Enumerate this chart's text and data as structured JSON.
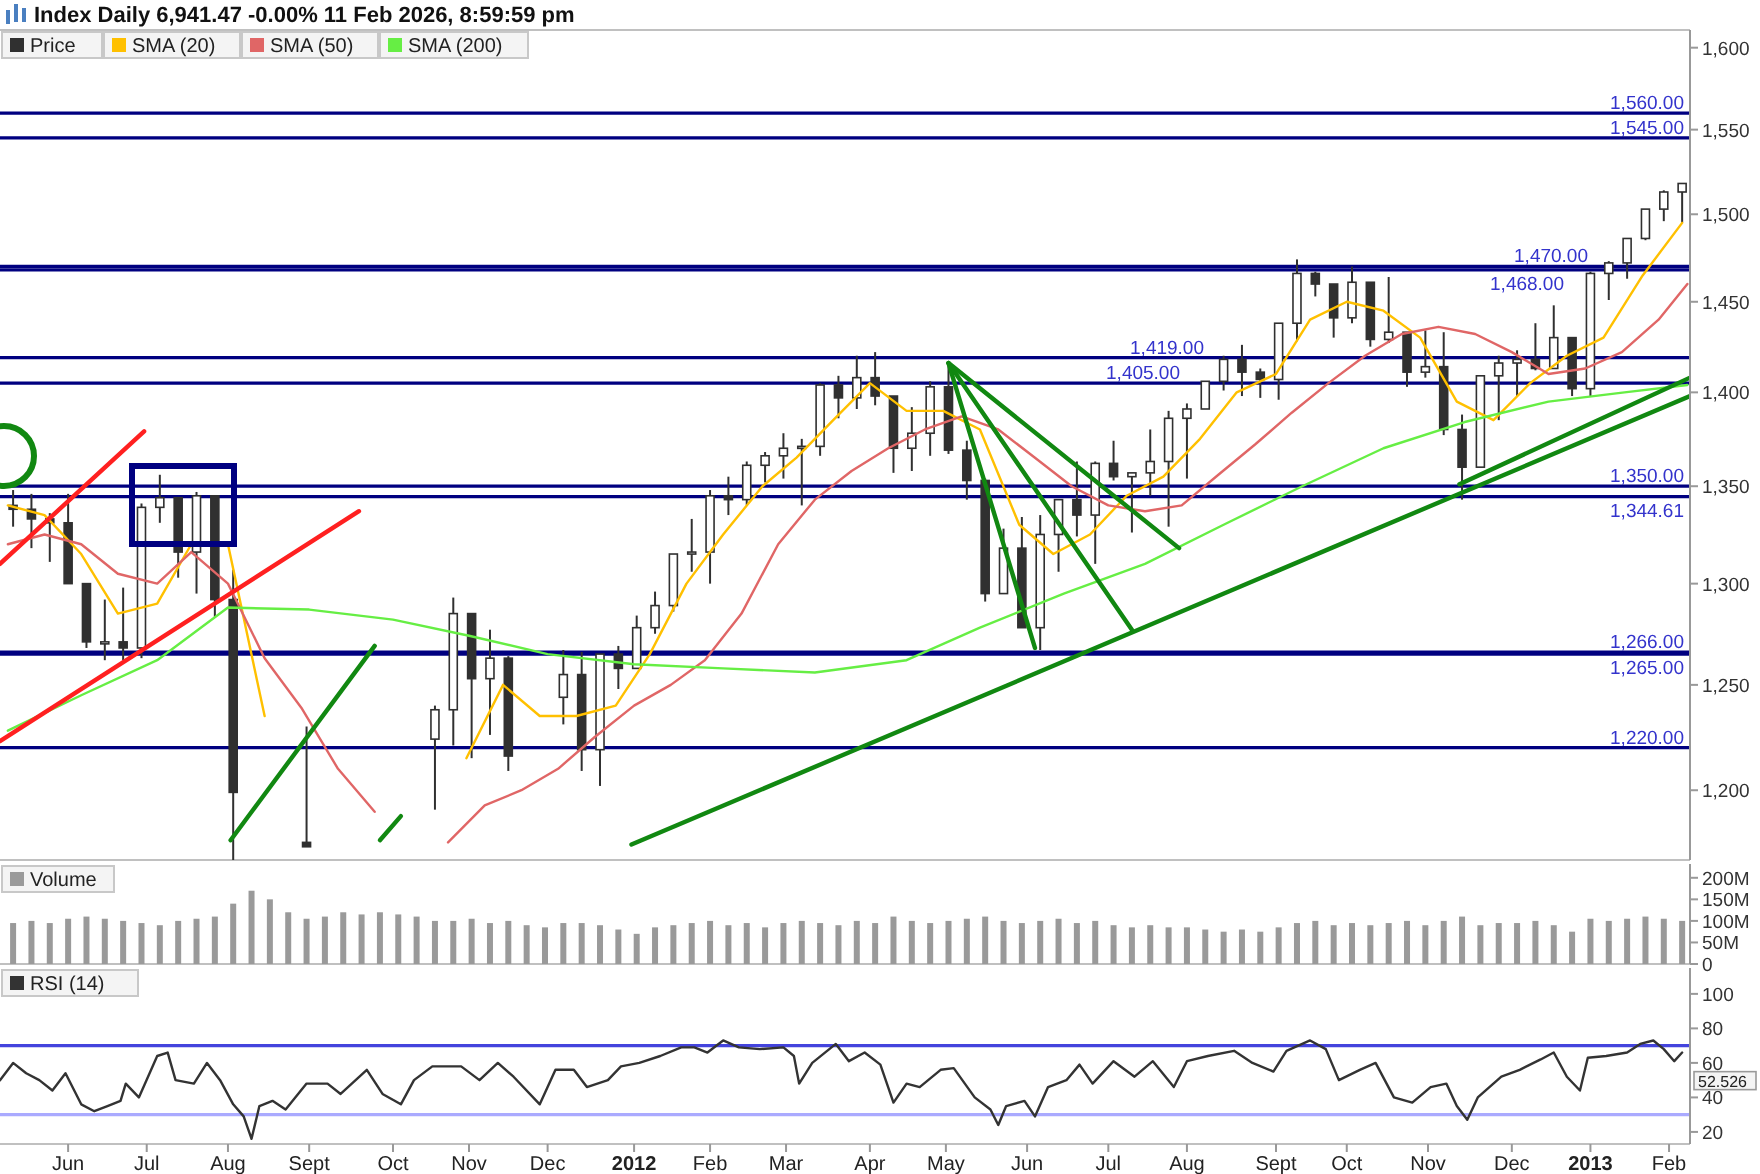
{
  "chart_data": [
    {
      "type": "candlestick",
      "title": "Index Daily 6,941.47 -0.00% 11 Feb 2026, 8:59:59 pm",
      "legend": "top left",
      "log": "y",
      "tick_labels": "y",
      "xlim": [
        "2011-05-06",
        "2013-02-09"
      ],
      "ylim": [
        1168,
        1611
      ],
      "yticks": [
        {
          "value": 1600,
          "label": "1,600"
        },
        {
          "value": 1550,
          "label": "1,550"
        },
        {
          "value": 1500,
          "label": "1,500"
        },
        {
          "value": 1450,
          "label": "1,450"
        },
        {
          "value": 1400,
          "label": "1,400"
        },
        {
          "value": 1350,
          "label": "1,350"
        },
        {
          "value": 1300,
          "label": "1,300"
        },
        {
          "value": 1250,
          "label": "1,250"
        },
        {
          "value": 1200,
          "label": "1,200"
        }
      ],
      "ref_lines": [
        {
          "axis": "y",
          "value": 1560,
          "label": "1,560.00",
          "color": "#000080"
        },
        {
          "axis": "y",
          "value": 1545,
          "label": "1,545.00",
          "color": "#000080"
        },
        {
          "axis": "y",
          "value": 1470,
          "label": "1,470.00",
          "color": "#000080"
        },
        {
          "axis": "y",
          "value": 1468,
          "label": "1,468.00",
          "color": "#000080"
        },
        {
          "axis": "y",
          "value": 1419,
          "label": "1,419.00",
          "color": "#000080"
        },
        {
          "axis": "y",
          "value": 1405,
          "label": "1,405.00",
          "color": "#000080"
        },
        {
          "axis": "y",
          "value": 1350,
          "label": "1,350.00",
          "color": "#000080"
        },
        {
          "axis": "y",
          "value": 1344.61,
          "label": "1,344.61",
          "color": "#000080"
        },
        {
          "axis": "y",
          "value": 1266,
          "label": "1,266.00",
          "color": "#000080"
        },
        {
          "axis": "y",
          "value": 1265,
          "label": "1,265.00",
          "color": "#000080"
        },
        {
          "axis": "y",
          "value": 1220,
          "label": "1,220.00",
          "color": "#000080"
        }
      ],
      "series": [
        {
          "name": "Price",
          "color": "#303030",
          "x": [
            "2011-05-11",
            "2011-05-18",
            "2011-05-25",
            "2011-06-01",
            "2011-06-08",
            "2011-06-15",
            "2011-06-22",
            "2011-06-29",
            "2011-07-06",
            "2011-07-13",
            "2011-07-20",
            "2011-07-27",
            "2011-08-03",
            "2011-08-31",
            "2011-10-19",
            "2011-10-26",
            "2011-11-02",
            "2011-11-09",
            "2011-11-16",
            "2011-12-07",
            "2011-12-14",
            "2011-12-21",
            "2011-12-28",
            "2012-01-04",
            "2012-01-11",
            "2012-01-18",
            "2012-01-25",
            "2012-02-01",
            "2012-02-08",
            "2012-02-15",
            "2012-02-22",
            "2012-02-29",
            "2012-03-07",
            "2012-03-14",
            "2012-03-21",
            "2012-03-28",
            "2012-04-04",
            "2012-04-11",
            "2012-04-18",
            "2012-04-25",
            "2012-05-02",
            "2012-05-09",
            "2012-05-16",
            "2012-05-23",
            "2012-05-30",
            "2012-06-06",
            "2012-06-13",
            "2012-06-20",
            "2012-06-27",
            "2012-07-04",
            "2012-07-11",
            "2012-07-18",
            "2012-07-25",
            "2012-08-01",
            "2012-08-08",
            "2012-08-15",
            "2012-08-22",
            "2012-08-29",
            "2012-09-05",
            "2012-09-12",
            "2012-09-19",
            "2012-09-26",
            "2012-10-03",
            "2012-10-10",
            "2012-10-17",
            "2012-10-24",
            "2012-10-31",
            "2012-11-07",
            "2012-11-14",
            "2012-11-21",
            "2012-11-28",
            "2012-12-05",
            "2012-12-12",
            "2012-12-19",
            "2012-12-26",
            "2013-01-02",
            "2013-01-09",
            "2013-01-16",
            "2013-01-23",
            "2013-01-30",
            "2013-02-06"
          ],
          "ohlc": [
            [
              1340,
              1348,
              1329,
              1338
            ],
            [
              1338,
              1346,
              1318,
              1333
            ],
            [
              1333,
              1336,
              1311,
              1331
            ],
            [
              1331,
              1346,
              1300,
              1300
            ],
            [
              1300,
              1300,
              1268,
              1271
            ],
            [
              1271,
              1292,
              1262,
              1271
            ],
            [
              1271,
              1298,
              1262,
              1268
            ],
            [
              1268,
              1341,
              1263,
              1339
            ],
            [
              1339,
              1356,
              1331,
              1344
            ],
            [
              1344,
              1344,
              1303,
              1316
            ],
            [
              1316,
              1347,
              1295,
              1345
            ],
            [
              1345,
              1345,
              1283,
              1292
            ],
            [
              1292,
              1307,
              1168,
              1199
            ],
            [
              1176,
              1230,
              1174,
              1174
            ],
            [
              1224,
              1240,
              1191,
              1238
            ],
            [
              1238,
              1293,
              1221,
              1285
            ],
            [
              1285,
              1285,
              1215,
              1253
            ],
            [
              1253,
              1277,
              1226,
              1263
            ],
            [
              1263,
              1264,
              1209,
              1216
            ],
            [
              1244,
              1267,
              1231,
              1255
            ],
            [
              1255,
              1266,
              1209,
              1219
            ],
            [
              1219,
              1265,
              1202,
              1265
            ],
            [
              1265,
              1269,
              1248,
              1258
            ],
            [
              1258,
              1284,
              1258,
              1278
            ],
            [
              1278,
              1296,
              1275,
              1289
            ],
            [
              1289,
              1315,
              1286,
              1315
            ],
            [
              1315,
              1333,
              1306,
              1316
            ],
            [
              1316,
              1348,
              1300,
              1345
            ],
            [
              1345,
              1355,
              1335,
              1343
            ],
            [
              1343,
              1363,
              1340,
              1361
            ],
            [
              1361,
              1368,
              1352,
              1366
            ],
            [
              1366,
              1378,
              1354,
              1370
            ],
            [
              1370,
              1375,
              1340,
              1371
            ],
            [
              1371,
              1405,
              1366,
              1404
            ],
            [
              1404,
              1409,
              1386,
              1397
            ],
            [
              1397,
              1420,
              1391,
              1408
            ],
            [
              1408,
              1422,
              1393,
              1398
            ],
            [
              1398,
              1398,
              1357,
              1370
            ],
            [
              1370,
              1392,
              1358,
              1378
            ],
            [
              1378,
              1406,
              1366,
              1403
            ],
            [
              1403,
              1415,
              1367,
              1369
            ],
            [
              1369,
              1374,
              1343,
              1353
            ],
            [
              1353,
              1354,
              1291,
              1295
            ],
            [
              1295,
              1328,
              1295,
              1318
            ],
            [
              1318,
              1334,
              1278,
              1278
            ],
            [
              1278,
              1335,
              1267,
              1325
            ],
            [
              1325,
              1343,
              1306,
              1343
            ],
            [
              1343,
              1363,
              1324,
              1335
            ],
            [
              1335,
              1363,
              1310,
              1362
            ],
            [
              1362,
              1374,
              1353,
              1355
            ],
            [
              1355,
              1357,
              1326,
              1357
            ],
            [
              1357,
              1380,
              1345,
              1363
            ],
            [
              1363,
              1390,
              1329,
              1386
            ],
            [
              1386,
              1394,
              1354,
              1391
            ],
            [
              1391,
              1406,
              1391,
              1406
            ],
            [
              1406,
              1420,
              1401,
              1418
            ],
            [
              1418,
              1426,
              1398,
              1411
            ],
            [
              1411,
              1413,
              1397,
              1407
            ],
            [
              1407,
              1438,
              1396,
              1438
            ],
            [
              1438,
              1474,
              1428,
              1466
            ],
            [
              1466,
              1467,
              1453,
              1460
            ],
            [
              1460,
              1460,
              1430,
              1441
            ],
            [
              1441,
              1470,
              1438,
              1461
            ],
            [
              1461,
              1461,
              1425,
              1429
            ],
            [
              1429,
              1464,
              1427,
              1433
            ],
            [
              1433,
              1433,
              1403,
              1411
            ],
            [
              1411,
              1434,
              1408,
              1414
            ],
            [
              1414,
              1433,
              1377,
              1380
            ],
            [
              1380,
              1388,
              1343,
              1360
            ],
            [
              1360,
              1409,
              1360,
              1409
            ],
            [
              1409,
              1420,
              1385,
              1416
            ],
            [
              1416,
              1423,
              1398,
              1418
            ],
            [
              1418,
              1438,
              1412,
              1413
            ],
            [
              1413,
              1448,
              1413,
              1430
            ],
            [
              1430,
              1430,
              1398,
              1402
            ],
            [
              1402,
              1467,
              1398,
              1466
            ],
            [
              1466,
              1473,
              1451,
              1472
            ],
            [
              1472,
              1486,
              1463,
              1486
            ],
            [
              1486,
              1503,
              1485,
              1503
            ],
            [
              1503,
              1514,
              1496,
              1513
            ],
            [
              1513,
              1518,
              1495,
              1518
            ]
          ]
        },
        {
          "name": "SMA (20)",
          "type": "line",
          "color": "#ffc000",
          "x": [
            "2011-05-09",
            "2011-05-23",
            "2011-06-06",
            "2011-06-20",
            "2011-07-05",
            "2011-07-18",
            "2011-08-01",
            "2011-08-15",
            "2011-08-29",
            "2011-09-12",
            "2011-09-26",
            "2011-10-10",
            "2011-10-31",
            "2011-11-14",
            "2011-11-28",
            "2011-12-12",
            "2011-12-27",
            "2012-01-09",
            "2012-01-23",
            "2012-02-06",
            "2012-02-21",
            "2012-03-05",
            "2012-03-19",
            "2012-04-02",
            "2012-04-16",
            "2012-04-30",
            "2012-05-14",
            "2012-05-29",
            "2012-06-11",
            "2012-06-25",
            "2012-07-09",
            "2012-07-23",
            "2012-08-06",
            "2012-08-20",
            "2012-09-04",
            "2012-09-17",
            "2012-10-01",
            "2012-10-15",
            "2012-10-29",
            "2012-11-12",
            "2012-11-26",
            "2012-12-10",
            "2012-12-24",
            "2013-01-07",
            "2013-01-22",
            "2013-02-06"
          ],
          "values": [
            1340,
            1335,
            1315,
            1285,
            1290,
            1320,
            1320,
            1235,
            null,
            null,
            null,
            null,
            1215,
            1250,
            1235,
            1235,
            1240,
            1265,
            1300,
            1325,
            1350,
            1365,
            1385,
            1405,
            1390,
            1390,
            1380,
            1330,
            1315,
            1325,
            1345,
            1355,
            1375,
            1400,
            1410,
            1440,
            1450,
            1445,
            1430,
            1395,
            1385,
            1405,
            1420,
            1430,
            1465,
            1495
          ]
        },
        {
          "name": "SMA (50)",
          "type": "line",
          "color": "#e06666",
          "x": [
            "2011-05-09",
            "2011-05-23",
            "2011-06-06",
            "2011-06-20",
            "2011-07-05",
            "2011-07-18",
            "2011-08-01",
            "2011-08-15",
            "2011-08-29",
            "2011-09-12",
            "2011-09-26",
            "2011-10-10",
            "2011-10-24",
            "2011-11-07",
            "2011-11-21",
            "2011-12-05",
            "2011-12-19",
            "2012-01-03",
            "2012-01-17",
            "2012-01-30",
            "2012-02-13",
            "2012-02-27",
            "2012-03-12",
            "2012-03-26",
            "2012-04-09",
            "2012-04-23",
            "2012-05-07",
            "2012-05-21",
            "2012-06-04",
            "2012-06-18",
            "2012-07-02",
            "2012-07-16",
            "2012-07-30",
            "2012-08-13",
            "2012-08-27",
            "2012-09-10",
            "2012-09-24",
            "2012-10-08",
            "2012-10-22",
            "2012-11-05",
            "2012-11-19",
            "2012-12-03",
            "2012-12-17",
            "2012-12-31",
            "2013-01-14",
            "2013-01-28",
            "2013-02-08"
          ],
          "values": [
            1320,
            1325,
            1320,
            1305,
            1300,
            1316,
            1300,
            1263,
            1239,
            1210,
            1190,
            null,
            1176,
            1193,
            1200,
            1210,
            1225,
            1240,
            1250,
            1262,
            1285,
            1320,
            1343,
            1358,
            1370,
            1380,
            1387,
            1380,
            1365,
            1350,
            1340,
            1337,
            1340,
            1356,
            1372,
            1389,
            1405,
            1420,
            1432,
            1436,
            1432,
            1422,
            1410,
            1413,
            1422,
            1440,
            1460
          ]
        },
        {
          "name": "SMA (200)",
          "type": "line",
          "color": "#66ee44",
          "x": [
            "2011-05-09",
            "2011-06-06",
            "2011-07-05",
            "2011-08-01",
            "2011-09-01",
            "2011-10-03",
            "2011-11-01",
            "2011-12-01",
            "2012-01-03",
            "2012-02-06",
            "2012-03-12",
            "2012-04-16",
            "2012-05-14",
            "2012-06-15",
            "2012-07-16",
            "2012-08-15",
            "2012-09-14",
            "2012-10-15",
            "2012-11-15",
            "2012-12-17",
            "2013-01-15",
            "2013-02-08"
          ],
          "values": [
            1228,
            1245,
            1262,
            1288,
            1287,
            1282,
            1274,
            1265,
            1260,
            1258,
            1256,
            1262,
            1278,
            1295,
            1310,
            1330,
            1350,
            1370,
            1384,
            1395,
            1400,
            1404
          ]
        },
        {
          "type": "line",
          "color": "#ff2020",
          "x": [
            "2011-05-06",
            "2011-06-30"
          ],
          "values": [
            1310,
            1379
          ]
        },
        {
          "type": "line",
          "color": "#ff2020",
          "x": [
            "2011-05-06",
            "2011-09-20"
          ],
          "values": [
            1223,
            1337
          ]
        },
        {
          "type": "line",
          "color": "#118811",
          "x": [
            "2011-08-02",
            "2011-09-26"
          ],
          "values": [
            1177,
            1269
          ]
        },
        {
          "type": "line",
          "color": "#118811",
          "x": [
            "2011-09-28",
            "2011-10-06"
          ],
          "values": [
            1177,
            1188
          ]
        },
        {
          "type": "line",
          "color": "#118811",
          "x": [
            "2012-01-02",
            "2013-02-09"
          ],
          "values": [
            1175,
            1398
          ]
        },
        {
          "type": "line",
          "color": "#118811",
          "x": [
            "2012-11-13",
            "2013-02-09"
          ],
          "values": [
            1351,
            1408
          ]
        },
        {
          "type": "line",
          "color": "#118811",
          "x": [
            "2012-05-02",
            "2012-06-04"
          ],
          "values": [
            1416,
            1268
          ]
        },
        {
          "type": "line",
          "color": "#118811",
          "x": [
            "2012-05-02",
            "2012-07-11"
          ],
          "values": [
            1416,
            1277
          ]
        },
        {
          "type": "line",
          "color": "#118811",
          "x": [
            "2012-05-02",
            "2012-07-29"
          ],
          "values": [
            1416,
            1318
          ]
        }
      ]
    },
    {
      "type": "bar",
      "legend": "top left",
      "tick_labels": "y",
      "xlim": [
        "2011-05-06",
        "2013-02-09"
      ],
      "ylim": [
        0,
        232
      ],
      "yticks": [
        0,
        {
          "value": 50,
          "label": "50M"
        },
        {
          "value": 100,
          "label": "100M"
        },
        {
          "value": 150,
          "label": "150M"
        },
        {
          "value": 200,
          "label": "200M"
        }
      ],
      "series": [
        {
          "name": "Volume",
          "color": "#9a9a9a",
          "x": [
            "2011-05-11",
            "2011-05-18",
            "2011-05-25",
            "2011-06-01",
            "2011-06-08",
            "2011-06-15",
            "2011-06-22",
            "2011-06-29",
            "2011-07-06",
            "2011-07-13",
            "2011-07-20",
            "2011-07-27",
            "2011-08-03",
            "2011-08-10",
            "2011-08-17",
            "2011-08-24",
            "2011-08-31",
            "2011-09-07",
            "2011-09-14",
            "2011-09-21",
            "2011-09-28",
            "2011-10-05",
            "2011-10-12",
            "2011-10-19",
            "2011-10-26",
            "2011-11-02",
            "2011-11-09",
            "2011-11-16",
            "2011-11-23",
            "2011-11-30",
            "2011-12-07",
            "2011-12-14",
            "2011-12-21",
            "2011-12-28",
            "2012-01-04",
            "2012-01-11",
            "2012-01-18",
            "2012-01-25",
            "2012-02-01",
            "2012-02-08",
            "2012-02-15",
            "2012-02-22",
            "2012-02-29",
            "2012-03-07",
            "2012-03-14",
            "2012-03-21",
            "2012-03-28",
            "2012-04-04",
            "2012-04-11",
            "2012-04-18",
            "2012-04-25",
            "2012-05-02",
            "2012-05-09",
            "2012-05-16",
            "2012-05-23",
            "2012-05-30",
            "2012-06-06",
            "2012-06-13",
            "2012-06-20",
            "2012-06-27",
            "2012-07-04",
            "2012-07-11",
            "2012-07-18",
            "2012-07-25",
            "2012-08-01",
            "2012-08-08",
            "2012-08-15",
            "2012-08-22",
            "2012-08-29",
            "2012-09-05",
            "2012-09-12",
            "2012-09-19",
            "2012-09-26",
            "2012-10-03",
            "2012-10-10",
            "2012-10-17",
            "2012-10-24",
            "2012-10-31",
            "2012-11-07",
            "2012-11-14",
            "2012-11-21",
            "2012-11-28",
            "2012-12-05",
            "2012-12-12",
            "2012-12-19",
            "2012-12-26",
            "2013-01-02",
            "2013-01-09",
            "2013-01-16",
            "2013-01-23",
            "2013-01-30",
            "2013-02-06"
          ],
          "values": [
            95,
            100,
            95,
            105,
            110,
            105,
            100,
            95,
            90,
            100,
            105,
            110,
            140,
            170,
            150,
            120,
            105,
            110,
            120,
            115,
            120,
            115,
            110,
            100,
            100,
            105,
            95,
            100,
            90,
            85,
            95,
            95,
            90,
            80,
            70,
            85,
            90,
            95,
            100,
            90,
            95,
            85,
            95,
            100,
            95,
            90,
            100,
            95,
            110,
            100,
            95,
            100,
            105,
            110,
            100,
            95,
            100,
            105,
            95,
            100,
            90,
            85,
            90,
            85,
            85,
            80,
            75,
            80,
            75,
            85,
            95,
            100,
            90,
            95,
            90,
            95,
            100,
            90,
            100,
            110,
            90,
            95,
            95,
            100,
            90,
            75,
            105,
            100,
            105,
            110,
            105,
            100
          ]
        }
      ]
    },
    {
      "type": "line",
      "legend": "top left",
      "xlim": [
        "2011-05-06",
        "2013-02-09"
      ],
      "ylim": [
        13,
        115
      ],
      "yticks": [
        20,
        40,
        60,
        80,
        100
      ],
      "xticks": [
        {
          "value": "2011-06-01",
          "label": "Jun"
        },
        {
          "value": "2011-07-01",
          "label": "Jul"
        },
        {
          "value": "2011-08-01",
          "label": "Aug"
        },
        {
          "value": "2011-09-01",
          "label": "Sept"
        },
        {
          "value": "2011-10-03",
          "label": "Oct"
        },
        {
          "value": "2011-11-01",
          "label": "Nov"
        },
        {
          "value": "2011-12-01",
          "label": "Dec"
        },
        {
          "value": "2012-01-03",
          "label": "2012"
        },
        {
          "value": "2012-02-01",
          "label": "Feb"
        },
        {
          "value": "2012-03-01",
          "label": "Mar"
        },
        {
          "value": "2012-04-02",
          "label": "Apr"
        },
        {
          "value": "2012-05-01",
          "label": "May"
        },
        {
          "value": "2012-06-01",
          "label": "Jun"
        },
        {
          "value": "2012-07-02",
          "label": "Jul"
        },
        {
          "value": "2012-08-01",
          "label": "Aug"
        },
        {
          "value": "2012-09-04",
          "label": "Sept"
        },
        {
          "value": "2012-10-01",
          "label": "Oct"
        },
        {
          "value": "2012-11-01",
          "label": "Nov"
        },
        {
          "value": "2012-12-03",
          "label": "Dec"
        },
        {
          "value": "2013-01-02",
          "label": "2013"
        },
        {
          "value": "2013-02-01",
          "label": "Feb"
        }
      ],
      "ref_lines": [
        {
          "axis": "y",
          "value": 70,
          "color": "#4444dd"
        },
        {
          "axis": "y",
          "value": 30,
          "color": "#aaaaff"
        }
      ],
      "annotations": [
        "52.526"
      ],
      "series": [
        {
          "name": "RSI (14)",
          "color": "#333333",
          "x": [
            "2011-05-06",
            "2011-05-11",
            "2011-05-16",
            "2011-05-21",
            "2011-05-26",
            "2011-05-31",
            "2011-06-06",
            "2011-06-11",
            "2011-06-16",
            "2011-06-21",
            "2011-06-23",
            "2011-06-28",
            "2011-07-05",
            "2011-07-09",
            "2011-07-12",
            "2011-07-19",
            "2011-07-24",
            "2011-07-29",
            "2011-08-03",
            "2011-08-07",
            "2011-08-10",
            "2011-08-13",
            "2011-08-18",
            "2011-08-23",
            "2011-08-31",
            "2011-09-08",
            "2011-09-13",
            "2011-09-23",
            "2011-09-29",
            "2011-10-06",
            "2011-10-11",
            "2011-10-18",
            "2011-10-29",
            "2011-11-05",
            "2011-11-12",
            "2011-11-18",
            "2011-11-28",
            "2011-12-04",
            "2011-12-11",
            "2011-12-16",
            "2011-12-24",
            "2011-12-29",
            "2012-01-05",
            "2012-01-13",
            "2012-01-21",
            "2012-01-26",
            "2012-01-31",
            "2012-02-06",
            "2012-02-12",
            "2012-02-20",
            "2012-02-29",
            "2012-03-04",
            "2012-03-06",
            "2012-03-11",
            "2012-03-20",
            "2012-03-25",
            "2012-03-31",
            "2012-04-06",
            "2012-04-11",
            "2012-04-16",
            "2012-04-21",
            "2012-04-29",
            "2012-05-04",
            "2012-05-12",
            "2012-05-18",
            "2012-05-21",
            "2012-05-24",
            "2012-05-31",
            "2012-06-04",
            "2012-06-09",
            "2012-06-16",
            "2012-06-21",
            "2012-06-26",
            "2012-07-04",
            "2012-07-12",
            "2012-07-19",
            "2012-07-27",
            "2012-08-01",
            "2012-08-09",
            "2012-08-19",
            "2012-08-26",
            "2012-09-03",
            "2012-09-08",
            "2012-09-17",
            "2012-09-23",
            "2012-09-28",
            "2012-10-06",
            "2012-10-12",
            "2012-10-19",
            "2012-10-26",
            "2012-11-02",
            "2012-11-08",
            "2012-11-12",
            "2012-11-16",
            "2012-11-20",
            "2012-11-29",
            "2012-12-06",
            "2012-12-14",
            "2012-12-19",
            "2012-12-24",
            "2012-12-29",
            "2013-01-01",
            "2013-01-08",
            "2013-01-16",
            "2013-01-21",
            "2013-01-26",
            "2013-01-30",
            "2013-02-03",
            "2013-02-06"
          ],
          "values": [
            50,
            60,
            54,
            50,
            44,
            54,
            36,
            32,
            35,
            38,
            48,
            40,
            64,
            66,
            50,
            48,
            60,
            50,
            36,
            29,
            16,
            35,
            38,
            33,
            48,
            48,
            42,
            56,
            42,
            36,
            50,
            58,
            58,
            50,
            60,
            52,
            36,
            56,
            56,
            46,
            50,
            58,
            60,
            64,
            69,
            69,
            66,
            73,
            69,
            68,
            69,
            64,
            48,
            60,
            71,
            61,
            66,
            59,
            37,
            48,
            46,
            56,
            57,
            40,
            33,
            24,
            35,
            38,
            29,
            46,
            50,
            59,
            48,
            61,
            52,
            61,
            46,
            61,
            64,
            67,
            60,
            55,
            67,
            73,
            68,
            50,
            56,
            60,
            40,
            37,
            46,
            48,
            35,
            27,
            40,
            52,
            56,
            62,
            66,
            52,
            44,
            63,
            64,
            66,
            71,
            73,
            68,
            61,
            66
          ]
        }
      ]
    }
  ]
}
